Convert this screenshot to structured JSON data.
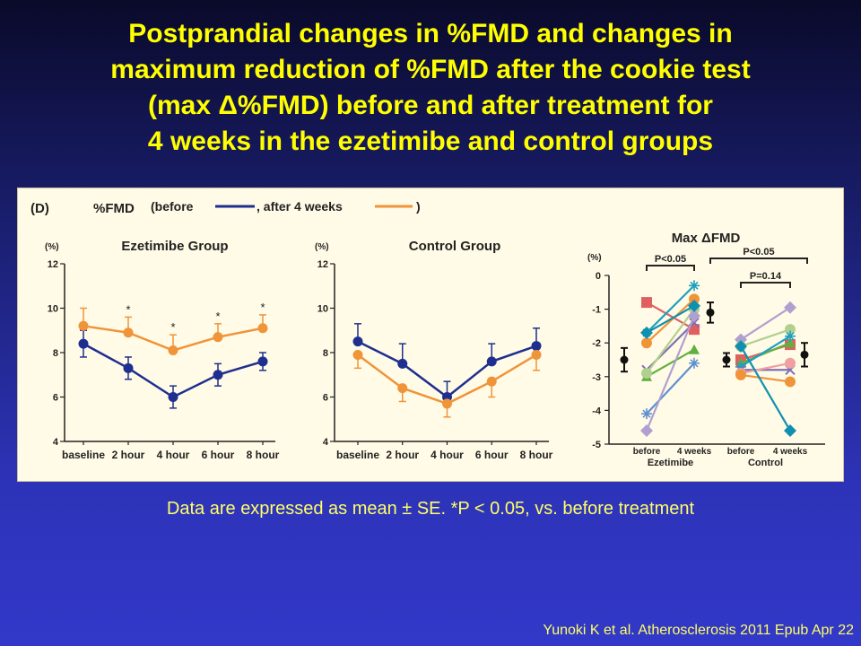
{
  "slide": {
    "title_lines": [
      "Postprandial changes in %FMD and changes in",
      "maximum reduction of %FMD after the cookie test",
      "(max Δ%FMD) before and after treatment for",
      "4 weeks in the ezetimibe and control groups"
    ],
    "caption": "Data are expressed as mean ± SE. *P < 0.05, vs. before treatment",
    "citation": "Yunoki K et al. Atherosclerosis 2011 Epub Apr 22",
    "figure_label": "(D)",
    "legend": {
      "title": "%FMD",
      "before_text": "(before",
      "after_text": ", after 4 weeks",
      "close_text": ")"
    },
    "colors": {
      "before": "#1f2f8f",
      "after": "#f0943a",
      "title": "#ffff00",
      "caption": "#ffff66"
    }
  },
  "chart_data": [
    {
      "type": "line",
      "title": "Ezetimibe Group",
      "ylabel": "(%)",
      "ylim": [
        4,
        12
      ],
      "yticks": [
        "4",
        "6",
        "8",
        "10",
        "12"
      ],
      "categories": [
        "baseline",
        "2 hour",
        "4 hour",
        "6 hour",
        "8 hour"
      ],
      "series": [
        {
          "key": "before",
          "values": [
            8.4,
            7.3,
            6.0,
            7.0,
            7.6
          ],
          "errors": [
            0.6,
            0.5,
            0.5,
            0.5,
            0.4
          ]
        },
        {
          "key": "after",
          "values": [
            9.2,
            8.9,
            8.1,
            8.7,
            9.1
          ],
          "errors": [
            0.8,
            0.7,
            0.7,
            0.6,
            0.6
          ]
        }
      ],
      "annotations": [
        "",
        "*",
        "*",
        "*",
        "*"
      ]
    },
    {
      "type": "line",
      "title": "Control Group",
      "ylabel": "(%)",
      "ylim": [
        4,
        12
      ],
      "yticks": [
        "4",
        "6",
        "8",
        "10",
        "12"
      ],
      "categories": [
        "baseline",
        "2 hour",
        "4 hour",
        "6 hour",
        "8 hour"
      ],
      "series": [
        {
          "key": "before",
          "values": [
            8.5,
            7.5,
            6.0,
            7.6,
            8.3
          ],
          "errors": [
            0.8,
            0.9,
            0.7,
            0.8,
            0.8
          ]
        },
        {
          "key": "after",
          "values": [
            7.9,
            6.4,
            5.7,
            6.7,
            7.9
          ],
          "errors": [
            0.6,
            0.6,
            0.6,
            0.7,
            0.7
          ]
        }
      ]
    },
    {
      "type": "scatter",
      "title": "Max ΔFMD",
      "ylabel": "(%)",
      "ylim": [
        -5,
        0
      ],
      "yticks": [
        "0",
        "-1",
        "-2",
        "-3",
        "-4",
        "-5"
      ],
      "groups": [
        {
          "label": "Ezetimibe",
          "conditions": [
            "before",
            "4 weeks"
          ],
          "p_value": "P<0.05",
          "mean_before": -2.5,
          "se_before": 0.35,
          "mean_after": -1.1,
          "se_after": 0.3
        },
        {
          "label": "Control",
          "conditions": [
            "before",
            "4 weeks"
          ],
          "p_value": "P=0.14",
          "mean_before": -2.5,
          "se_before": 0.2,
          "mean_after": -2.35,
          "se_after": 0.35
        }
      ],
      "between_groups_p": "P<0.05",
      "pairs": [
        {
          "group": 0,
          "before": -0.8,
          "after": -1.6,
          "color": "#e06060",
          "marker": "square"
        },
        {
          "group": 0,
          "before": -1.7,
          "after": -0.3,
          "color": "#20a0c0",
          "marker": "star"
        },
        {
          "group": 0,
          "before": -2.0,
          "after": -0.7,
          "color": "#f0943a",
          "marker": "circle"
        },
        {
          "group": 0,
          "before": -2.8,
          "after": -1.4,
          "color": "#8070b0",
          "marker": "x"
        },
        {
          "group": 0,
          "before": -3.0,
          "after": -2.2,
          "color": "#60b040",
          "marker": "triangle"
        },
        {
          "group": 0,
          "before": -2.9,
          "after": -1.0,
          "color": "#b0d090",
          "marker": "circle"
        },
        {
          "group": 0,
          "before": -4.1,
          "after": -2.6,
          "color": "#6090d0",
          "marker": "star"
        },
        {
          "group": 0,
          "before": -4.6,
          "after": -1.2,
          "color": "#b0a0d0",
          "marker": "diamond"
        },
        {
          "group": 0,
          "before": -1.7,
          "after": -0.9,
          "color": "#1090b0",
          "marker": "diamond"
        },
        {
          "group": 1,
          "before": -1.9,
          "after": -0.95,
          "color": "#b0a0d0",
          "marker": "diamond"
        },
        {
          "group": 1,
          "before": -2.1,
          "after": -1.6,
          "color": "#b0d090",
          "marker": "circle"
        },
        {
          "group": 1,
          "before": -2.5,
          "after": -2.05,
          "color": "#e06060",
          "marker": "square"
        },
        {
          "group": 1,
          "before": -2.6,
          "after": -2.0,
          "color": "#60b040",
          "marker": "triangle"
        },
        {
          "group": 1,
          "before": -2.7,
          "after": -1.8,
          "color": "#20a0c0",
          "marker": "star"
        },
        {
          "group": 1,
          "before": -2.8,
          "after": -2.8,
          "color": "#8070b0",
          "marker": "x"
        },
        {
          "group": 1,
          "before": -2.9,
          "after": -2.6,
          "color": "#f0a0a0",
          "marker": "circle"
        },
        {
          "group": 1,
          "before": -2.95,
          "after": -3.15,
          "color": "#f0943a",
          "marker": "circle"
        },
        {
          "group": 1,
          "before": -2.1,
          "after": -4.6,
          "color": "#1090b0",
          "marker": "diamond"
        }
      ]
    }
  ]
}
